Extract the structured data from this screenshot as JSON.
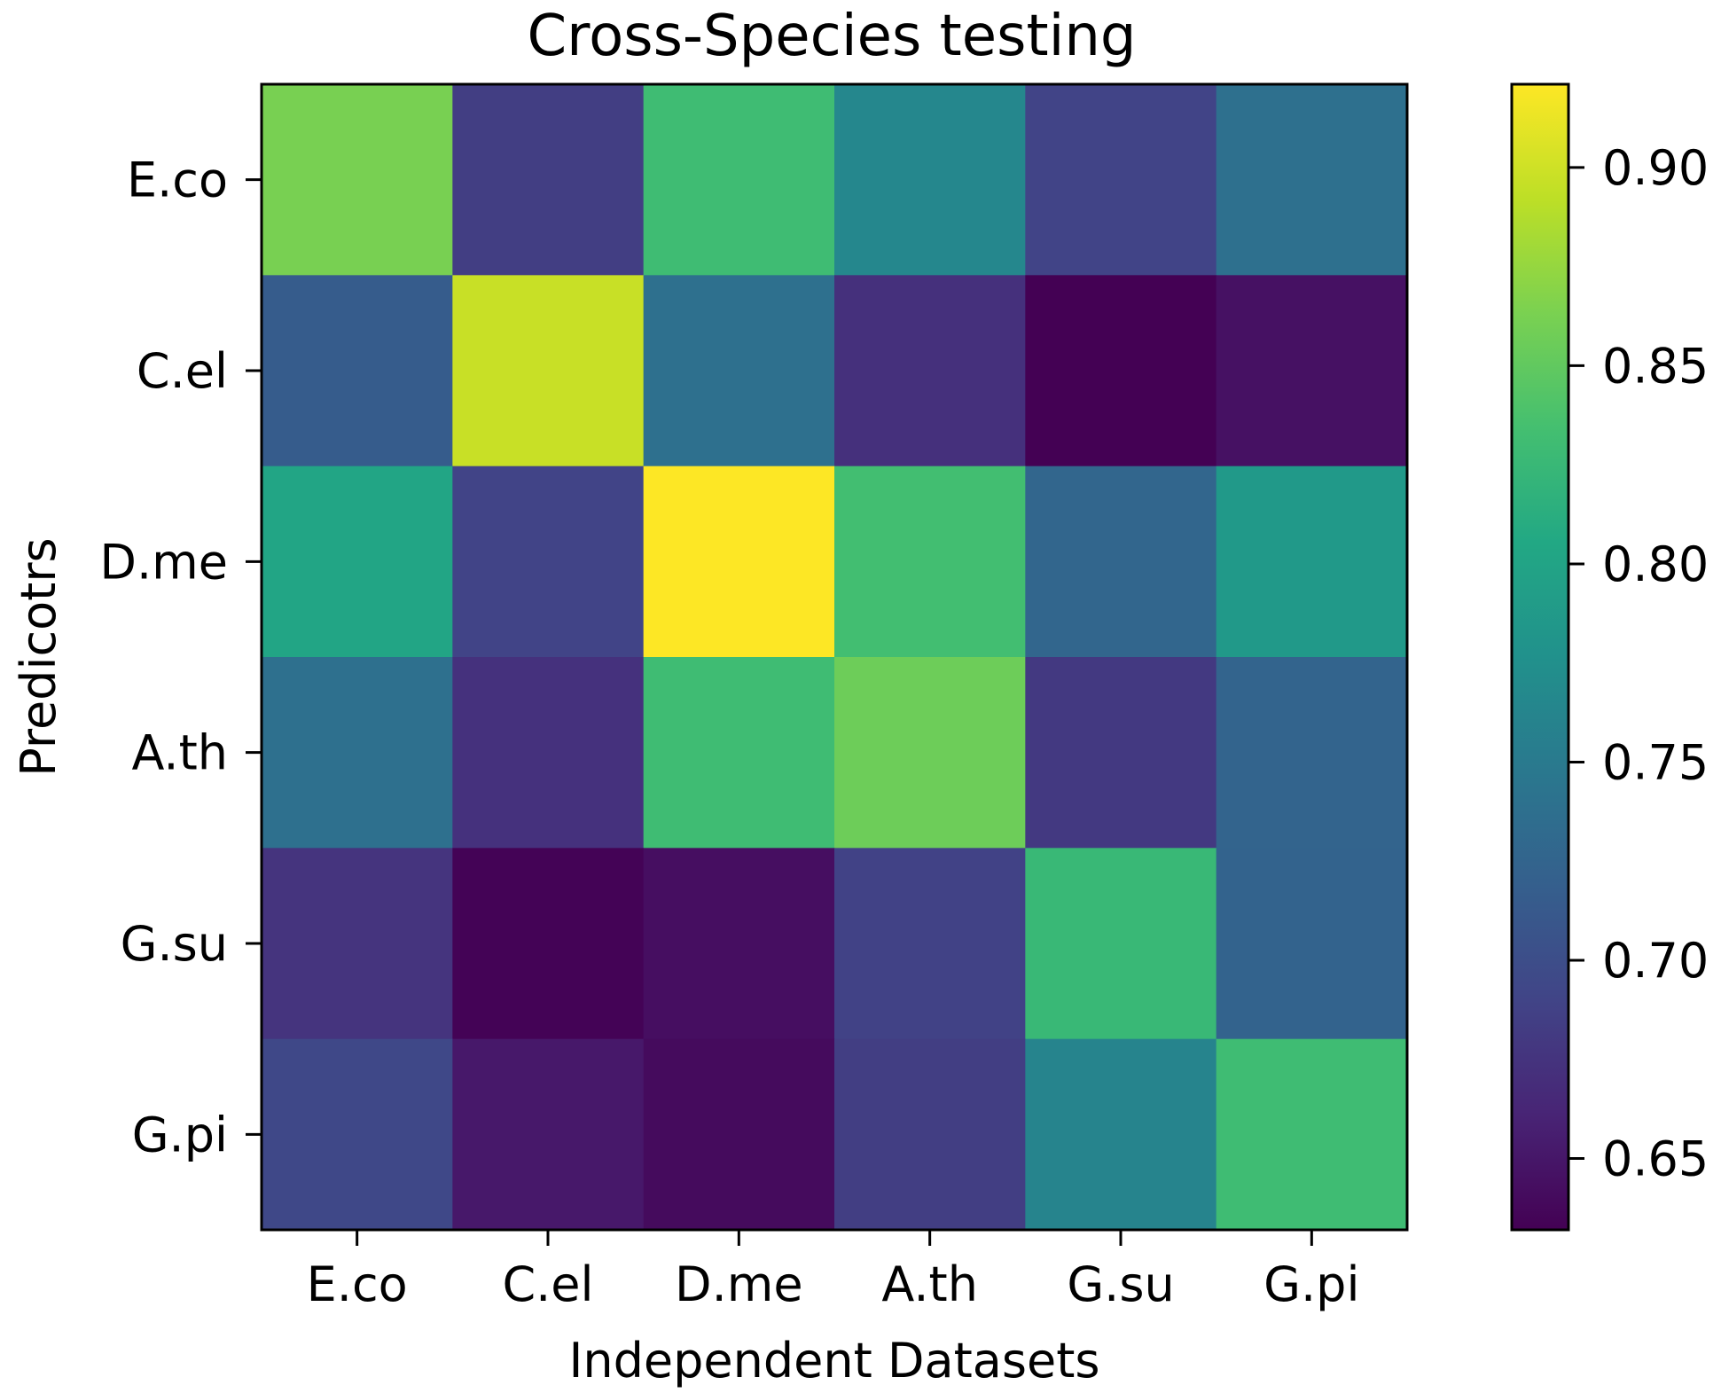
{
  "chart_data": {
    "type": "heatmap",
    "title": "Cross-Species testing",
    "xlabel": "Independent Datasets",
    "ylabel": "Predicotrs",
    "x_categories": [
      "E.co",
      "C.el",
      "D.me",
      "A.th",
      "G.su",
      "G.pi"
    ],
    "y_categories": [
      "E.co",
      "C.el",
      "D.me",
      "A.th",
      "G.su",
      "G.pi"
    ],
    "values": [
      [
        0.862,
        0.684,
        0.83,
        0.765,
        0.69,
        0.738
      ],
      [
        0.716,
        0.897,
        0.738,
        0.672,
        0.632,
        0.645
      ],
      [
        0.802,
        0.69,
        0.921,
        0.833,
        0.727,
        0.786
      ],
      [
        0.738,
        0.673,
        0.83,
        0.856,
        0.68,
        0.724
      ],
      [
        0.675,
        0.634,
        0.643,
        0.688,
        0.825,
        0.723
      ],
      [
        0.694,
        0.651,
        0.64,
        0.684,
        0.762,
        0.83
      ]
    ],
    "colormap": "viridis",
    "colorbar": {
      "range": [
        0.632,
        0.921
      ],
      "ticks": [
        0.65,
        0.7,
        0.75,
        0.8,
        0.85,
        0.9
      ],
      "tick_labels": [
        "0.65",
        "0.70",
        "0.75",
        "0.80",
        "0.85",
        "0.90"
      ]
    },
    "grid": false
  }
}
